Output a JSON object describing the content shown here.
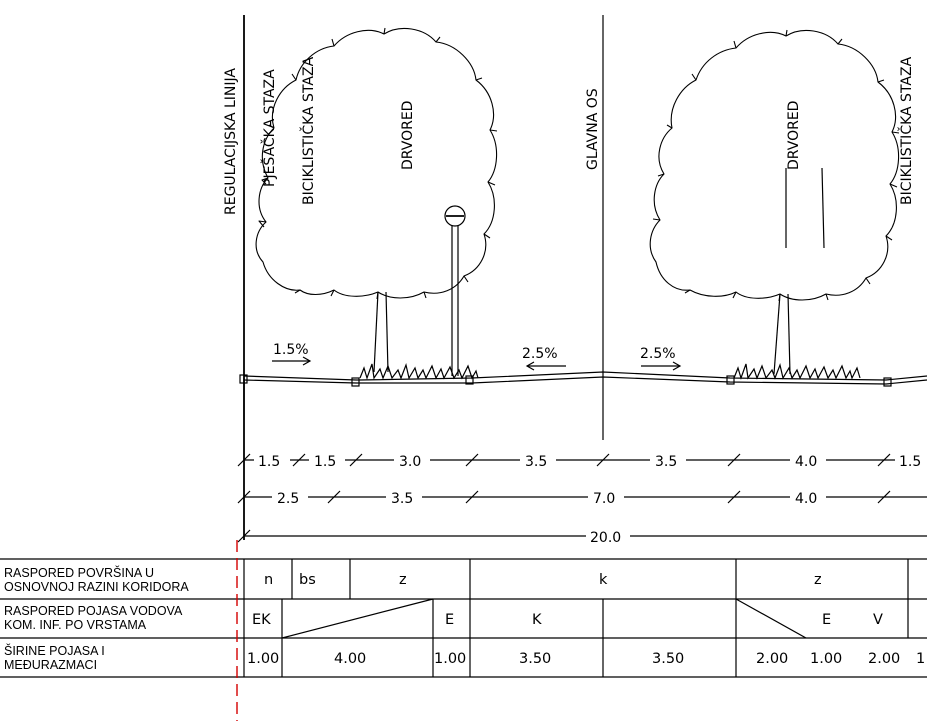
{
  "labels": {
    "regulacijska": "REGULACIJSKA LINIJA",
    "pjesacka": "PJEŠAČKA STAZA",
    "biciklisticka_left": "BICIKLISTIČKA STAZA",
    "drvored_left": "DRVORED",
    "glavna_os": "GLAVNA OS",
    "drvored_right": "DRVORED",
    "biciklisticka_right": "BICIKLISTIČKA STAZA"
  },
  "slopes": [
    "1.5%",
    "2.5%",
    "2.5%"
  ],
  "dimensions": {
    "row1": [
      "1.5",
      "1.5",
      "3.0",
      "3.5",
      "3.5",
      "4.0",
      "1.5"
    ],
    "row2": [
      "2.5",
      "3.5",
      "7.0",
      "4.0"
    ],
    "row3": [
      "20.0"
    ]
  },
  "table": {
    "row_labels": [
      [
        "RASPORED POVRŠINA U",
        "OSNOVNOJ RAZINI KORIDORA"
      ],
      [
        "RASPORED POJASA VODOVA",
        "KOM. INF. PO VRSTAMA"
      ],
      [
        "ŠIRINE POJASA I",
        "MEĐURAZMACI"
      ]
    ],
    "row1": [
      "n",
      "bs",
      "z",
      "k",
      "z"
    ],
    "row2": [
      "EK",
      "E",
      "K",
      "E",
      "V"
    ],
    "row3": [
      "1.00",
      "4.00",
      "1.00",
      "3.50",
      "3.50",
      "2.00",
      "1.00",
      "2.00",
      "1"
    ]
  }
}
